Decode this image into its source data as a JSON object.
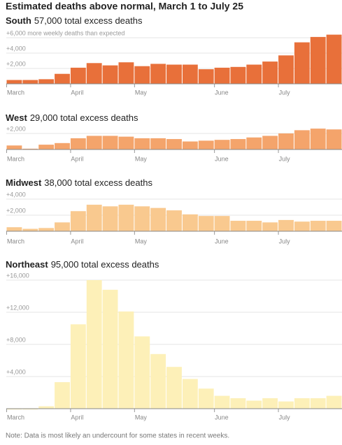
{
  "title": "Estimated deaths above normal, March 1 to July 25",
  "note": "Note: Data is most likely an undercount for some states in recent weeks.",
  "chart_data": [
    {
      "type": "bar",
      "title": "South",
      "subtitle": "57,000 total excess deaths",
      "color": "#e8703a",
      "categories": [
        "March",
        null,
        null,
        null,
        "April",
        null,
        null,
        null,
        "May",
        null,
        null,
        null,
        null,
        "June",
        null,
        null,
        null,
        "July",
        null,
        null,
        null
      ],
      "values": [
        500,
        500,
        600,
        1300,
        2100,
        2700,
        2400,
        2800,
        2300,
        2600,
        2500,
        2500,
        1900,
        2100,
        2200,
        2500,
        2900,
        3700,
        5400,
        6100,
        6400
      ],
      "ylim": [
        0,
        6800
      ],
      "yticks": [
        {
          "value": 2000,
          "label": "+2,000"
        },
        {
          "value": 4000,
          "label": "+4,000"
        },
        {
          "value": 6000,
          "label": "+6,000 more weekly deaths than expected"
        }
      ],
      "grid": true
    },
    {
      "type": "bar",
      "title": "West",
      "subtitle": "29,000 total excess deaths",
      "color": "#f4a46b",
      "categories": [
        "March",
        null,
        null,
        null,
        "April",
        null,
        null,
        null,
        "May",
        null,
        null,
        null,
        null,
        "June",
        null,
        null,
        null,
        "July",
        null,
        null,
        null
      ],
      "values": [
        500,
        100,
        600,
        800,
        1400,
        1700,
        1700,
        1600,
        1400,
        1400,
        1300,
        1000,
        1100,
        1200,
        1300,
        1500,
        1700,
        2000,
        2400,
        2600,
        2500
      ],
      "ylim": [
        0,
        2900
      ],
      "yticks": [
        {
          "value": 2000,
          "label": "+2,000"
        }
      ],
      "grid": true
    },
    {
      "type": "bar",
      "title": "Midwest",
      "subtitle": "38,000 total excess deaths",
      "color": "#f9c98f",
      "categories": [
        "March",
        null,
        null,
        null,
        "April",
        null,
        null,
        null,
        "May",
        null,
        null,
        null,
        null,
        "June",
        null,
        null,
        null,
        "July",
        null,
        null,
        null
      ],
      "values": [
        500,
        300,
        400,
        1100,
        2500,
        3300,
        3100,
        3300,
        3100,
        2900,
        2600,
        2100,
        1900,
        1900,
        1300,
        1300,
        1100,
        1400,
        1200,
        1300,
        1300
      ],
      "ylim": [
        0,
        4300
      ],
      "yticks": [
        {
          "value": 2000,
          "label": "+2,000"
        },
        {
          "value": 4000,
          "label": "+4,000"
        }
      ],
      "grid": true
    },
    {
      "type": "bar",
      "title": "Northeast",
      "subtitle": "95,000 total excess deaths",
      "color": "#fdf0b8",
      "categories": [
        "March",
        null,
        null,
        null,
        "April",
        null,
        null,
        null,
        "May",
        null,
        null,
        null,
        null,
        "June",
        null,
        null,
        null,
        "July",
        null,
        null,
        null
      ],
      "values": [
        -100,
        -100,
        300,
        3300,
        10500,
        16000,
        14800,
        12100,
        9000,
        6800,
        5200,
        3700,
        2500,
        1600,
        1300,
        1000,
        1300,
        900,
        1300,
        1300,
        1600
      ],
      "ylim": [
        -400,
        16600
      ],
      "yticks": [
        {
          "value": 4000,
          "label": "+4,000"
        },
        {
          "value": 8000,
          "label": "+8,000"
        },
        {
          "value": 12000,
          "label": "+12,000"
        },
        {
          "value": 16000,
          "label": "+16,000"
        }
      ],
      "grid": true
    }
  ]
}
